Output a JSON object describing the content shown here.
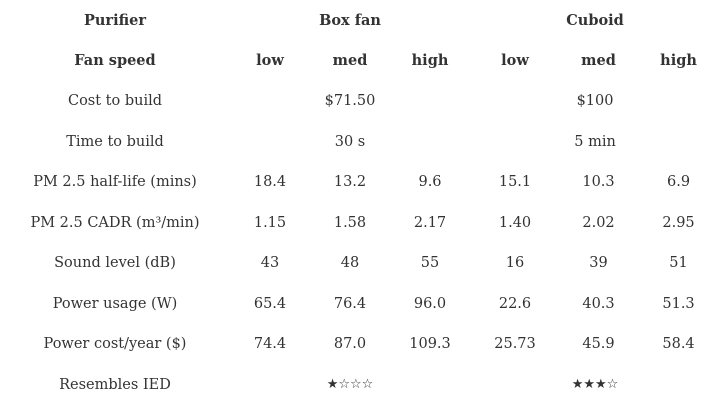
{
  "table": {
    "header_row1": {
      "corner": "Purifier",
      "group1": "Box fan",
      "group2": "Cuboid"
    },
    "header_row2": {
      "corner": "Fan speed",
      "speeds": [
        "low",
        "med",
        "high",
        "low",
        "med",
        "high"
      ]
    },
    "rows": [
      {
        "label": "Cost to build",
        "boxfan": "$71.50",
        "cuboid": "$100"
      },
      {
        "label": "Time to build",
        "boxfan": "30 s",
        "cuboid": "5 min"
      },
      {
        "label": "PM 2.5 half-life (mins)",
        "values": [
          "18.4",
          "13.2",
          "9.6",
          "15.1",
          "10.3",
          "6.9"
        ]
      },
      {
        "label": "PM 2.5 CADR (m³/min)",
        "values": [
          "1.15",
          "1.58",
          "2.17",
          "1.40",
          "2.02",
          "2.95"
        ]
      },
      {
        "label": "Sound level (dB)",
        "values": [
          "43",
          "48",
          "55",
          "16",
          "39",
          "51"
        ]
      },
      {
        "label": "Power usage (W)",
        "values": [
          "65.4",
          "76.4",
          "96.0",
          "22.6",
          "40.3",
          "51.3"
        ]
      },
      {
        "label": "Power cost/year ($)",
        "values": [
          "74.4",
          "87.0",
          "109.3",
          "25.73",
          "45.9",
          "58.4"
        ]
      },
      {
        "label": "Resembles IED",
        "boxfan": "★☆☆☆",
        "cuboid": "★★★☆"
      }
    ]
  }
}
